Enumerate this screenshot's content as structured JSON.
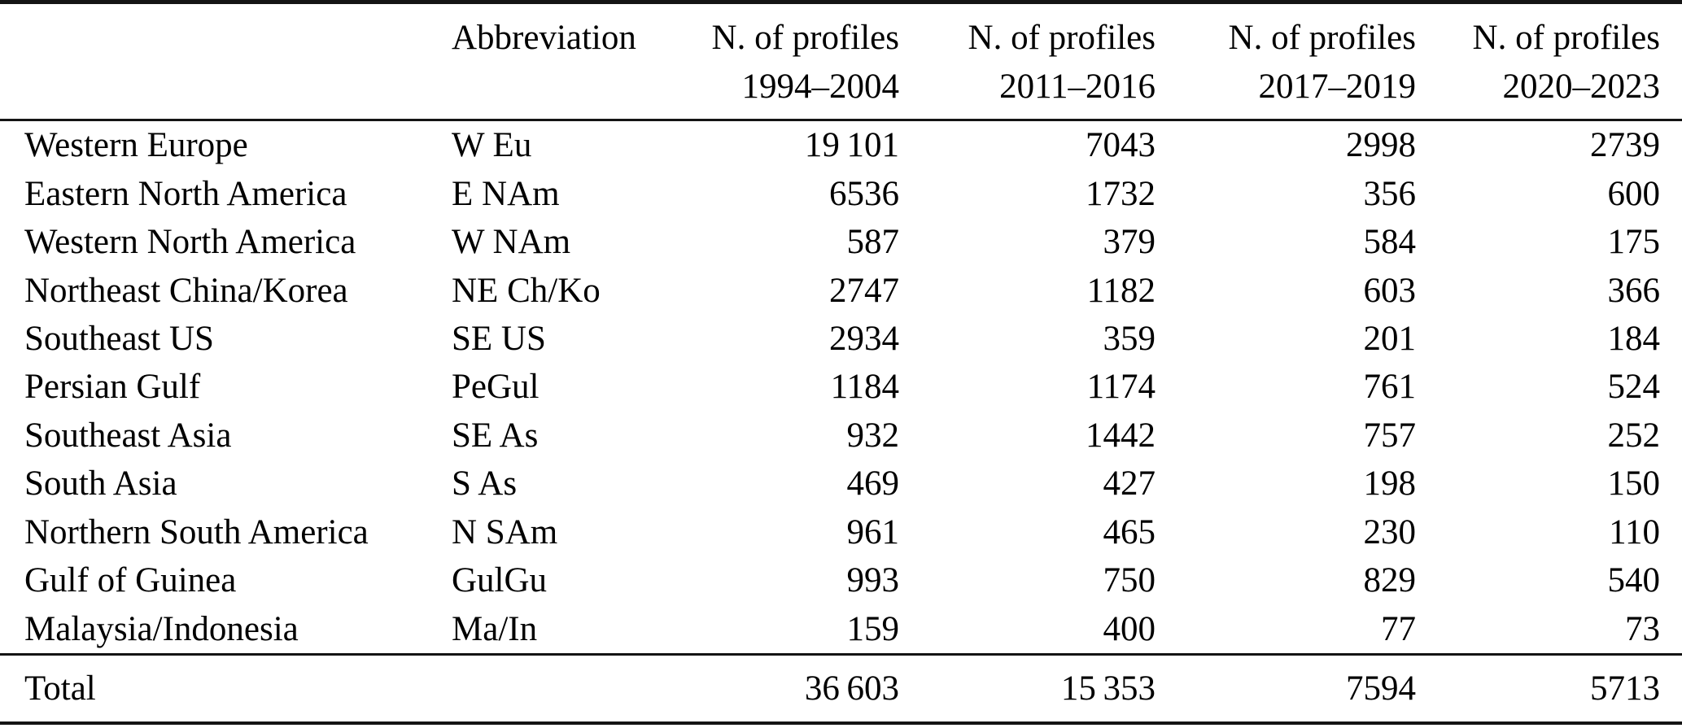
{
  "table": {
    "header": {
      "region_label": "",
      "abbreviation_label": "Abbreviation",
      "period_columns": [
        {
          "title": "N. of profiles",
          "years": "1994–2004"
        },
        {
          "title": "N. of profiles",
          "years": "2011–2016"
        },
        {
          "title": "N. of profiles",
          "years": "2017–2019"
        },
        {
          "title": "N. of profiles",
          "years": "2020–2023"
        }
      ]
    },
    "rows": [
      {
        "region": "Western Europe",
        "abbr": "W Eu",
        "values": [
          "19 101",
          "7043",
          "2998",
          "2739"
        ]
      },
      {
        "region": "Eastern North America",
        "abbr": "E NAm",
        "values": [
          "6536",
          "1732",
          "356",
          "600"
        ]
      },
      {
        "region": "Western North America",
        "abbr": "W NAm",
        "values": [
          "587",
          "379",
          "584",
          "175"
        ]
      },
      {
        "region": "Northeast China/Korea",
        "abbr": "NE Ch/Ko",
        "values": [
          "2747",
          "1182",
          "603",
          "366"
        ]
      },
      {
        "region": "Southeast US",
        "abbr": "SE US",
        "values": [
          "2934",
          "359",
          "201",
          "184"
        ]
      },
      {
        "region": "Persian Gulf",
        "abbr": "PeGul",
        "values": [
          "1184",
          "1174",
          "761",
          "524"
        ]
      },
      {
        "region": "Southeast Asia",
        "abbr": "SE As",
        "values": [
          "932",
          "1442",
          "757",
          "252"
        ]
      },
      {
        "region": "South Asia",
        "abbr": "S As",
        "values": [
          "469",
          "427",
          "198",
          "150"
        ]
      },
      {
        "region": "Northern South America",
        "abbr": "N SAm",
        "values": [
          "961",
          "465",
          "230",
          "110"
        ]
      },
      {
        "region": "Gulf of Guinea",
        "abbr": "GulGu",
        "values": [
          "993",
          "750",
          "829",
          "540"
        ]
      },
      {
        "region": "Malaysia/Indonesia",
        "abbr": "Ma/In",
        "values": [
          "159",
          "400",
          "77",
          "73"
        ]
      }
    ],
    "total_row": {
      "label": "Total",
      "abbr": "",
      "values": [
        "36 603",
        "15 353",
        "7594",
        "5713"
      ]
    }
  },
  "colors": {
    "text": "#000000",
    "background": "#ffffff",
    "rule": "#141414"
  }
}
